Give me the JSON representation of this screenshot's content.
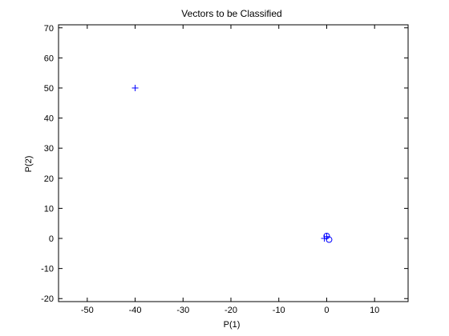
{
  "chart_data": {
    "type": "scatter",
    "title": "Vectors to be Classified",
    "xlabel": "P(1)",
    "ylabel": "P(2)",
    "xlim": [
      -56,
      17
    ],
    "ylim": [
      -21,
      71
    ],
    "xticks": [
      -50,
      -40,
      -30,
      -20,
      -10,
      0,
      10
    ],
    "yticks": [
      -20,
      -10,
      0,
      10,
      20,
      30,
      40,
      50,
      60,
      70
    ],
    "grid": false,
    "color": "#0000ff",
    "series": [
      {
        "marker": "+",
        "points": [
          [
            -40,
            50
          ],
          [
            -0.5,
            0
          ],
          [
            0,
            0.6
          ]
        ]
      },
      {
        "marker": "o",
        "points": [
          [
            0,
            0.8
          ],
          [
            0.5,
            -0.4
          ]
        ]
      }
    ]
  }
}
